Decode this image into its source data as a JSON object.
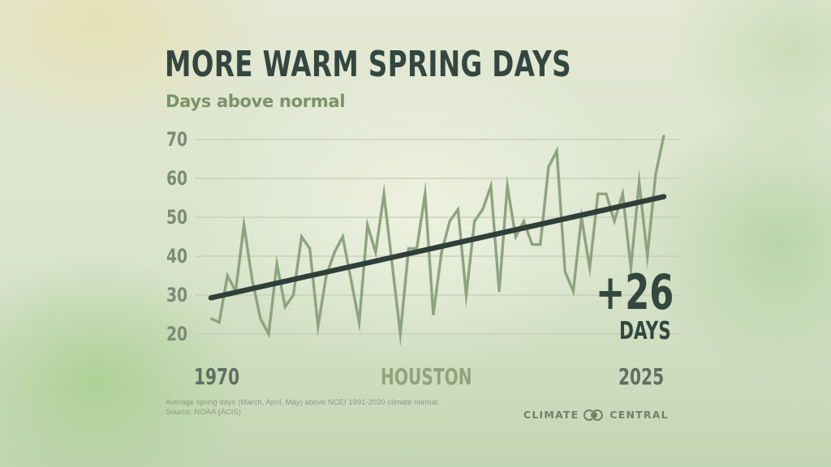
{
  "header": {
    "title": "MORE WARM SPRING DAYS",
    "subtitle": "Days above normal"
  },
  "annotation": {
    "change": "+26",
    "unit": "DAYS"
  },
  "footer": {
    "note_line1": "Average spring days (March, April, May) above NCEI 1991-2020 climate normal.",
    "note_line2": "Source: NOAA (ACIS)",
    "brand": "CLIMATE",
    "brand2": "CENTRAL",
    "logo_icon": "climate-central-logo"
  },
  "colors": {
    "series": "#8da47e",
    "trend": "#2f403a",
    "title": "#334740",
    "subtitle": "#7b9368",
    "grid": "#c5cbb8"
  },
  "chart_data": {
    "type": "line",
    "title": "MORE WARM SPRING DAYS",
    "subtitle": "Days above normal",
    "location": "HOUSTON",
    "xlabel": "",
    "ylabel": "",
    "xlim": [
      1970,
      2025
    ],
    "ylim": [
      20,
      70
    ],
    "x_tick_labels": [
      "1970",
      "2025"
    ],
    "y_ticks": [
      20,
      30,
      40,
      50,
      60,
      70
    ],
    "y_tick_labels": [
      "20",
      "30",
      "40",
      "50",
      "60",
      "70"
    ],
    "grid": true,
    "x": [
      1970,
      1971,
      1972,
      1973,
      1974,
      1975,
      1976,
      1977,
      1978,
      1979,
      1980,
      1981,
      1982,
      1983,
      1984,
      1985,
      1986,
      1987,
      1988,
      1989,
      1990,
      1991,
      1992,
      1993,
      1994,
      1995,
      1996,
      1997,
      1998,
      1999,
      2000,
      2001,
      2002,
      2003,
      2004,
      2005,
      2006,
      2007,
      2008,
      2009,
      2010,
      2011,
      2012,
      2013,
      2014,
      2015,
      2016,
      2017,
      2018,
      2019,
      2020,
      2021,
      2022,
      2023,
      2024,
      2025
    ],
    "series": [
      {
        "name": "Days above normal",
        "values": [
          24,
          23,
          35,
          31,
          48,
          34,
          24,
          20,
          38,
          27,
          30,
          45,
          42,
          22,
          35,
          41,
          45,
          34,
          23,
          48,
          41,
          56,
          38,
          20,
          42,
          42,
          56,
          25,
          41,
          49,
          52,
          30,
          49,
          52,
          58,
          31,
          58,
          45,
          49,
          43,
          43,
          63,
          67,
          36,
          31,
          50,
          37,
          56,
          56,
          49,
          56,
          37,
          59,
          40,
          61,
          71
        ]
      },
      {
        "name": "Trend",
        "values_at_ends": [
          29.3,
          55.3
        ]
      }
    ],
    "annotations": [
      "+26",
      "DAYS"
    ]
  }
}
